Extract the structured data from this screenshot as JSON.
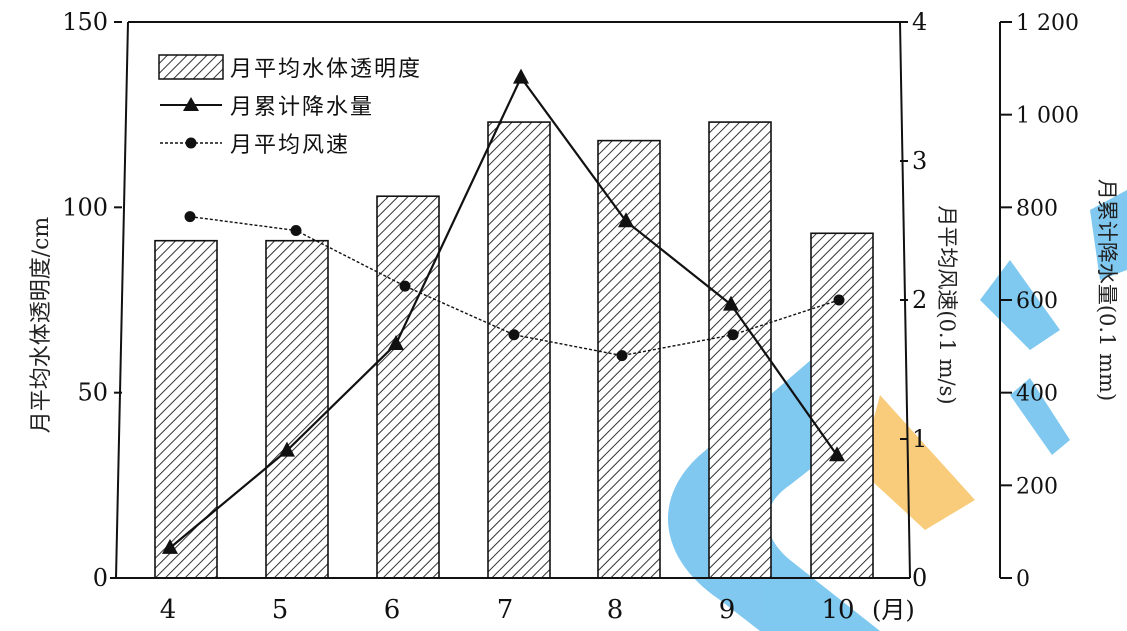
{
  "chart_data": {
    "type": "bar",
    "categories": [
      "4",
      "5",
      "6",
      "7",
      "8",
      "9",
      "10"
    ],
    "x_unit": "(月)",
    "series": [
      {
        "name": "月平均水体透明度",
        "kind": "bar",
        "axis": "left",
        "values": [
          91,
          91,
          103,
          123,
          118,
          123,
          93
        ]
      },
      {
        "name": "月累计降水量",
        "kind": "line",
        "marker": "triangle",
        "axis": "right",
        "values": [
          65,
          275,
          505,
          1080,
          770,
          590,
          265
        ]
      },
      {
        "name": "月平均风速",
        "kind": "line",
        "marker": "circle",
        "axis": "middle",
        "values": [
          2.6,
          2.5,
          2.1,
          1.75,
          1.6,
          1.75,
          2.0
        ]
      }
    ],
    "axes": {
      "left": {
        "label": "月平均水体透明度/cm",
        "range": [
          0,
          150
        ],
        "ticks": [
          "0",
          "50",
          "100",
          "150"
        ]
      },
      "middle": {
        "label": "月平均风速(0.1 m/s)",
        "range": [
          0,
          4
        ],
        "ticks": [
          "0",
          "1",
          "2",
          "3",
          "4"
        ]
      },
      "right": {
        "label": "月累计降水量(0.1 mm)",
        "range": [
          0,
          1200
        ],
        "ticks": [
          "0",
          "200",
          "400",
          "600",
          "800",
          "1 000",
          "1 200"
        ]
      }
    },
    "legend_position": "top-left",
    "grid": false
  },
  "colors": {
    "ink": "#111111",
    "bar_fill": "#ffffff",
    "hatch": "#333333",
    "watermark_blue": "#4fb3ea",
    "watermark_orange": "#f7b94a"
  }
}
